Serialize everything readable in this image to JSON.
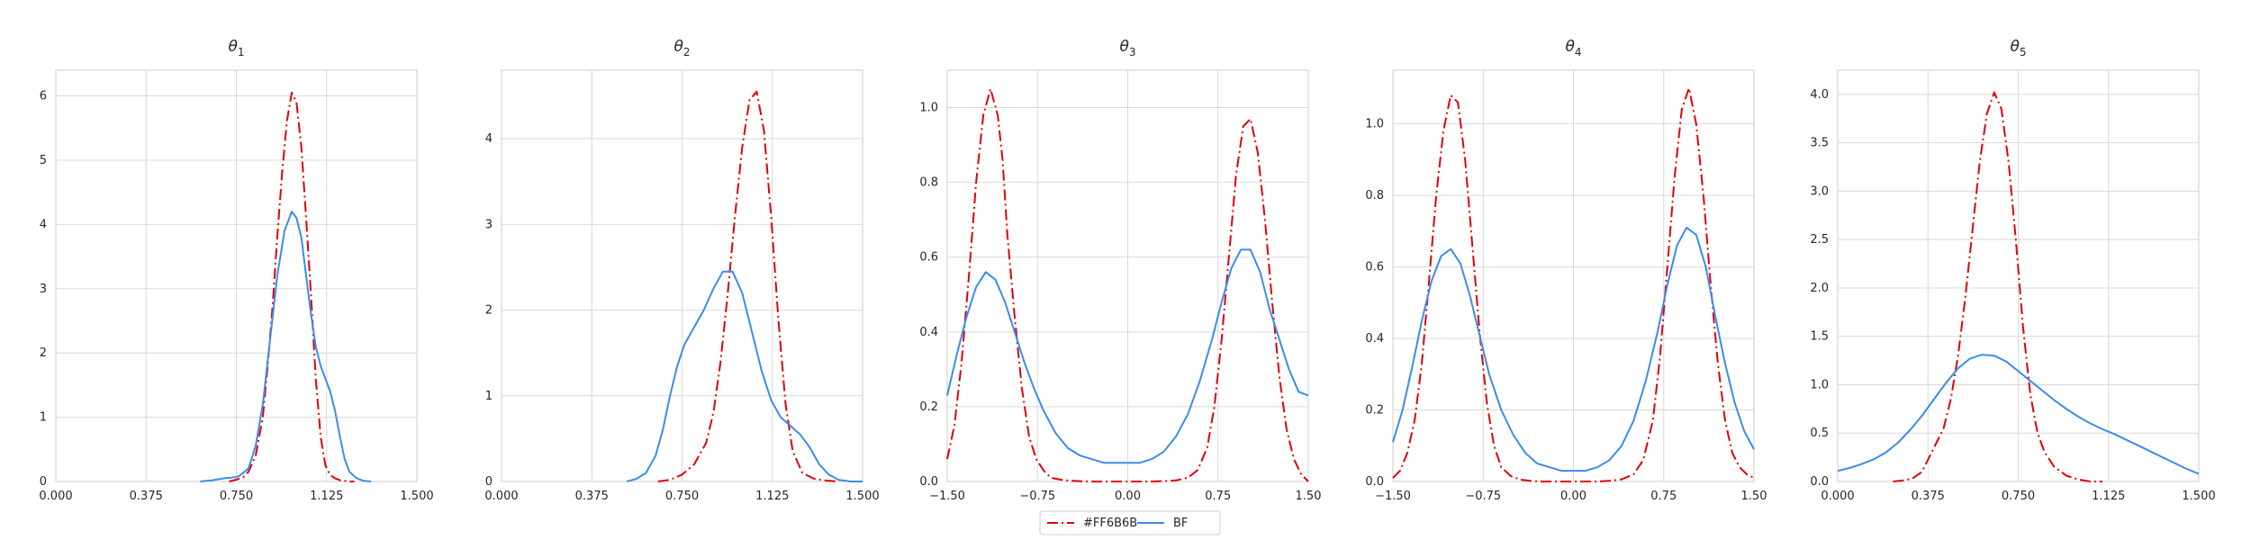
{
  "legend": {
    "entries": [
      {
        "label": "#FF6B6B",
        "color": "#E0000A",
        "dash": "12,4,2,4"
      },
      {
        "label": "BF",
        "color": "#3B8DE8",
        "dash": ""
      }
    ]
  },
  "chart_data": [
    {
      "type": "line",
      "title": "θ1",
      "title_symbol": "θ",
      "title_sub": "1",
      "xlim": [
        0,
        1.5
      ],
      "ylim": [
        0,
        6.4
      ],
      "xticks": [
        0,
        0.375,
        0.75,
        1.125,
        1.5
      ],
      "xtick_labels": [
        "0.000",
        "0.375",
        "0.750",
        "1.125",
        "1.500"
      ],
      "yticks": [
        0,
        1,
        2,
        3,
        4,
        5,
        6
      ],
      "ytick_labels": [
        "0",
        "1",
        "2",
        "3",
        "4",
        "5",
        "6"
      ],
      "grid": true,
      "series": [
        {
          "name": "#FF6B6B",
          "x": [
            0.72,
            0.75,
            0.78,
            0.8,
            0.83,
            0.86,
            0.88,
            0.9,
            0.92,
            0.94,
            0.96,
            0.98,
            1.0,
            1.02,
            1.04,
            1.06,
            1.08,
            1.1,
            1.12,
            1.14,
            1.16,
            1.18,
            1.2,
            1.22,
            1.24
          ],
          "y": [
            0.0,
            0.03,
            0.07,
            0.15,
            0.4,
            1.0,
            1.8,
            2.7,
            3.8,
            4.8,
            5.6,
            6.05,
            5.9,
            5.2,
            4.1,
            2.9,
            1.6,
            0.7,
            0.25,
            0.1,
            0.05,
            0.02,
            0.01,
            0.0,
            0.0
          ]
        },
        {
          "name": "BF",
          "x": [
            0.6,
            0.65,
            0.7,
            0.73,
            0.76,
            0.8,
            0.83,
            0.86,
            0.89,
            0.92,
            0.95,
            0.98,
            1.0,
            1.02,
            1.04,
            1.06,
            1.08,
            1.1,
            1.12,
            1.14,
            1.16,
            1.18,
            1.2,
            1.22,
            1.25,
            1.28,
            1.31
          ],
          "y": [
            0.0,
            0.02,
            0.05,
            0.06,
            0.08,
            0.2,
            0.55,
            1.2,
            2.2,
            3.2,
            3.9,
            4.2,
            4.1,
            3.8,
            3.2,
            2.6,
            2.1,
            1.8,
            1.6,
            1.4,
            1.1,
            0.7,
            0.35,
            0.15,
            0.05,
            0.01,
            0.0
          ]
        }
      ]
    },
    {
      "type": "line",
      "title": "θ2",
      "title_symbol": "θ",
      "title_sub": "2",
      "xlim": [
        0,
        1.5
      ],
      "ylim": [
        0,
        4.8
      ],
      "xticks": [
        0,
        0.375,
        0.75,
        1.125,
        1.5
      ],
      "xtick_labels": [
        "0.000",
        "0.375",
        "0.750",
        "1.125",
        "1.500"
      ],
      "yticks": [
        0,
        1,
        2,
        3,
        4
      ],
      "ytick_labels": [
        "0",
        "1",
        "2",
        "3",
        "4"
      ],
      "grid": true,
      "series": [
        {
          "name": "#FF6B6B",
          "x": [
            0.65,
            0.7,
            0.75,
            0.8,
            0.85,
            0.88,
            0.91,
            0.94,
            0.97,
            1.0,
            1.03,
            1.06,
            1.09,
            1.12,
            1.15,
            1.18,
            1.21,
            1.25,
            1.3,
            1.35,
            1.4
          ],
          "y": [
            0.0,
            0.02,
            0.08,
            0.2,
            0.45,
            0.8,
            1.4,
            2.2,
            3.1,
            3.9,
            4.45,
            4.55,
            4.1,
            3.1,
            1.9,
            0.9,
            0.35,
            0.1,
            0.03,
            0.01,
            0.0
          ]
        },
        {
          "name": "BF",
          "x": [
            0.52,
            0.56,
            0.6,
            0.64,
            0.67,
            0.7,
            0.73,
            0.76,
            0.8,
            0.84,
            0.88,
            0.92,
            0.96,
            1.0,
            1.04,
            1.08,
            1.12,
            1.16,
            1.2,
            1.24,
            1.28,
            1.32,
            1.36,
            1.4,
            1.45,
            1.5
          ],
          "y": [
            0.0,
            0.03,
            0.1,
            0.3,
            0.6,
            1.0,
            1.35,
            1.6,
            1.8,
            2.0,
            2.25,
            2.45,
            2.45,
            2.2,
            1.75,
            1.3,
            0.95,
            0.75,
            0.65,
            0.55,
            0.4,
            0.2,
            0.08,
            0.02,
            0.0,
            0.0
          ]
        }
      ]
    },
    {
      "type": "line",
      "title": "θ3",
      "title_symbol": "θ",
      "title_sub": "3",
      "xlim": [
        -1.5,
        1.5
      ],
      "ylim": [
        0,
        1.1
      ],
      "xticks": [
        -1.5,
        -0.75,
        0,
        0.75,
        1.5
      ],
      "xtick_labels": [
        "−1.50",
        "−0.75",
        "0.00",
        "0.75",
        "1.50"
      ],
      "yticks": [
        0,
        0.2,
        0.4,
        0.6,
        0.8,
        1.0
      ],
      "ytick_labels": [
        "0.0",
        "0.2",
        "0.4",
        "0.6",
        "0.8",
        "1.0"
      ],
      "grid": true,
      "series": [
        {
          "name": "#FF6B6B",
          "x": [
            -1.5,
            -1.44,
            -1.38,
            -1.32,
            -1.26,
            -1.2,
            -1.14,
            -1.08,
            -1.04,
            -1.0,
            -0.94,
            -0.88,
            -0.82,
            -0.76,
            -0.7,
            -0.64,
            -0.56,
            -0.48,
            -0.4,
            -0.3,
            -0.2,
            -0.1,
            0.0,
            0.1,
            0.2,
            0.3,
            0.4,
            0.5,
            0.58,
            0.66,
            0.72,
            0.78,
            0.84,
            0.9,
            0.96,
            1.02,
            1.08,
            1.14,
            1.2,
            1.26,
            1.32,
            1.38,
            1.44,
            1.5
          ],
          "y": [
            0.06,
            0.15,
            0.32,
            0.55,
            0.8,
            0.98,
            1.05,
            0.98,
            0.86,
            0.66,
            0.44,
            0.25,
            0.12,
            0.06,
            0.03,
            0.01,
            0.005,
            0.002,
            0.001,
            0.0,
            0.0,
            0.0,
            0.0,
            0.0,
            0.0,
            0.001,
            0.003,
            0.01,
            0.03,
            0.09,
            0.2,
            0.38,
            0.6,
            0.82,
            0.95,
            0.97,
            0.88,
            0.7,
            0.48,
            0.28,
            0.14,
            0.06,
            0.02,
            0.0
          ]
        },
        {
          "name": "BF",
          "x": [
            -1.5,
            -1.42,
            -1.34,
            -1.26,
            -1.18,
            -1.1,
            -1.02,
            -0.94,
            -0.86,
            -0.78,
            -0.7,
            -0.6,
            -0.5,
            -0.4,
            -0.3,
            -0.2,
            -0.1,
            0.0,
            0.1,
            0.2,
            0.3,
            0.4,
            0.5,
            0.6,
            0.7,
            0.78,
            0.86,
            0.94,
            1.02,
            1.1,
            1.18,
            1.26,
            1.34,
            1.42,
            1.5
          ],
          "y": [
            0.23,
            0.34,
            0.44,
            0.52,
            0.56,
            0.54,
            0.48,
            0.4,
            0.32,
            0.25,
            0.19,
            0.13,
            0.09,
            0.07,
            0.06,
            0.05,
            0.05,
            0.05,
            0.05,
            0.06,
            0.08,
            0.12,
            0.18,
            0.27,
            0.38,
            0.48,
            0.57,
            0.62,
            0.62,
            0.56,
            0.46,
            0.38,
            0.3,
            0.24,
            0.23
          ]
        }
      ]
    },
    {
      "type": "line",
      "title": "θ4",
      "title_symbol": "θ",
      "title_sub": "4",
      "xlim": [
        -1.5,
        1.5
      ],
      "ylim": [
        0,
        1.15
      ],
      "xticks": [
        -1.5,
        -0.75,
        0,
        0.75,
        1.5
      ],
      "xtick_labels": [
        "−1.50",
        "−0.75",
        "0.00",
        "0.75",
        "1.50"
      ],
      "yticks": [
        0,
        0.2,
        0.4,
        0.6,
        0.8,
        1.0
      ],
      "ytick_labels": [
        "0.0",
        "0.2",
        "0.4",
        "0.6",
        "0.8",
        "1.0"
      ],
      "grid": true,
      "series": [
        {
          "name": "#FF6B6B",
          "x": [
            -1.5,
            -1.44,
            -1.38,
            -1.32,
            -1.26,
            -1.2,
            -1.14,
            -1.08,
            -1.02,
            -0.96,
            -0.9,
            -0.84,
            -0.78,
            -0.72,
            -0.66,
            -0.6,
            -0.52,
            -0.44,
            -0.36,
            -0.28,
            -0.2,
            -0.1,
            0.0,
            0.1,
            0.2,
            0.3,
            0.4,
            0.5,
            0.58,
            0.66,
            0.72,
            0.78,
            0.84,
            0.9,
            0.96,
            1.02,
            1.08,
            1.14,
            1.2,
            1.26,
            1.32,
            1.38,
            1.44,
            1.5
          ],
          "y": [
            0.01,
            0.03,
            0.08,
            0.17,
            0.33,
            0.56,
            0.8,
            0.98,
            1.08,
            1.06,
            0.9,
            0.66,
            0.42,
            0.22,
            0.1,
            0.04,
            0.015,
            0.005,
            0.002,
            0.0,
            0.0,
            0.0,
            0.0,
            0.0,
            0.0,
            0.002,
            0.006,
            0.02,
            0.06,
            0.17,
            0.35,
            0.6,
            0.85,
            1.04,
            1.1,
            1.0,
            0.8,
            0.55,
            0.33,
            0.17,
            0.08,
            0.04,
            0.02,
            0.01
          ]
        },
        {
          "name": "BF",
          "x": [
            -1.5,
            -1.42,
            -1.34,
            -1.26,
            -1.18,
            -1.1,
            -1.02,
            -0.94,
            -0.86,
            -0.78,
            -0.7,
            -0.6,
            -0.5,
            -0.4,
            -0.3,
            -0.2,
            -0.1,
            0.0,
            0.1,
            0.2,
            0.3,
            0.4,
            0.5,
            0.6,
            0.7,
            0.78,
            0.86,
            0.94,
            1.02,
            1.1,
            1.18,
            1.26,
            1.34,
            1.42,
            1.5
          ],
          "y": [
            0.11,
            0.2,
            0.32,
            0.45,
            0.56,
            0.63,
            0.65,
            0.61,
            0.52,
            0.41,
            0.3,
            0.2,
            0.13,
            0.08,
            0.05,
            0.04,
            0.03,
            0.03,
            0.03,
            0.04,
            0.06,
            0.1,
            0.17,
            0.28,
            0.42,
            0.55,
            0.66,
            0.71,
            0.69,
            0.6,
            0.46,
            0.33,
            0.22,
            0.14,
            0.09
          ]
        }
      ]
    },
    {
      "type": "line",
      "title": "θ5",
      "title_symbol": "θ",
      "title_sub": "5",
      "xlim": [
        0,
        1.5
      ],
      "ylim": [
        0,
        4.25
      ],
      "xticks": [
        0,
        0.375,
        0.75,
        1.125,
        1.5
      ],
      "xtick_labels": [
        "0.000",
        "0.375",
        "0.750",
        "1.125",
        "1.500"
      ],
      "yticks": [
        0,
        0.5,
        1.0,
        1.5,
        2.0,
        2.5,
        3.0,
        3.5,
        4.0
      ],
      "ytick_labels": [
        "0.0",
        "0.5",
        "1.0",
        "1.5",
        "2.0",
        "2.5",
        "3.0",
        "3.5",
        "4.0"
      ],
      "grid": true,
      "series": [
        {
          "name": "#FF6B6B",
          "x": [
            0.23,
            0.27,
            0.31,
            0.35,
            0.38,
            0.41,
            0.44,
            0.47,
            0.5,
            0.53,
            0.56,
            0.59,
            0.62,
            0.65,
            0.68,
            0.71,
            0.74,
            0.77,
            0.8,
            0.83,
            0.86,
            0.9,
            0.95,
            1.0,
            1.05,
            1.1
          ],
          "y": [
            0.0,
            0.01,
            0.03,
            0.1,
            0.25,
            0.4,
            0.55,
            0.85,
            1.3,
            1.9,
            2.6,
            3.3,
            3.8,
            4.02,
            3.85,
            3.3,
            2.5,
            1.6,
            0.9,
            0.5,
            0.3,
            0.15,
            0.06,
            0.02,
            0.0,
            0.0
          ]
        },
        {
          "name": "BF",
          "x": [
            0.0,
            0.05,
            0.1,
            0.15,
            0.2,
            0.25,
            0.3,
            0.35,
            0.4,
            0.45,
            0.5,
            0.55,
            0.6,
            0.65,
            0.7,
            0.75,
            0.8,
            0.85,
            0.9,
            0.95,
            1.0,
            1.05,
            1.1,
            1.15,
            1.2,
            1.25,
            1.3,
            1.35,
            1.4,
            1.45,
            1.5
          ],
          "y": [
            0.11,
            0.14,
            0.18,
            0.23,
            0.3,
            0.4,
            0.53,
            0.68,
            0.85,
            1.02,
            1.17,
            1.27,
            1.31,
            1.3,
            1.24,
            1.14,
            1.04,
            0.94,
            0.84,
            0.75,
            0.67,
            0.6,
            0.54,
            0.49,
            0.43,
            0.37,
            0.31,
            0.25,
            0.19,
            0.13,
            0.08
          ]
        }
      ]
    }
  ]
}
